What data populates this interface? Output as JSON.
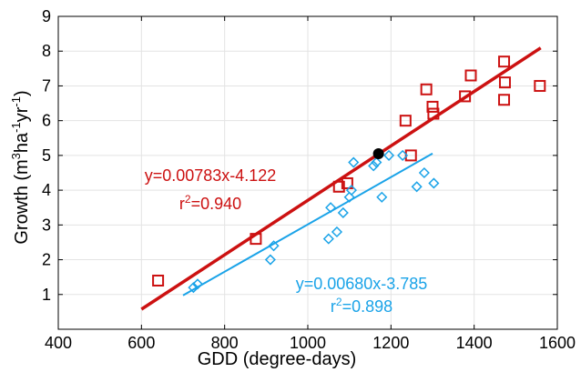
{
  "chart_data": {
    "type": "scatter",
    "xlabel": "GDD (degree-days)",
    "ylabel_parts": [
      "Growth (m",
      "3",
      "ha",
      "-1",
      "yr",
      "-1",
      ")"
    ],
    "xlim": [
      400,
      1600
    ],
    "ylim": [
      0,
      9
    ],
    "xticks": [
      400,
      600,
      800,
      1000,
      1200,
      1400,
      1600
    ],
    "yticks": [
      1,
      2,
      3,
      4,
      5,
      6,
      7,
      8,
      9
    ],
    "grid": true,
    "series": [
      {
        "id": "red",
        "marker": "square",
        "color": "#cc1111",
        "points": [
          [
            640,
            1.4
          ],
          [
            875,
            2.6
          ],
          [
            1075,
            4.1
          ],
          [
            1095,
            4.2
          ],
          [
            1235,
            6.0
          ],
          [
            1248,
            5.0
          ],
          [
            1285,
            6.9
          ],
          [
            1300,
            6.4
          ],
          [
            1302,
            6.2
          ],
          [
            1378,
            6.7
          ],
          [
            1392,
            7.3
          ],
          [
            1472,
            7.7
          ],
          [
            1474,
            7.1
          ],
          [
            1472,
            6.6
          ],
          [
            1558,
            7.0
          ]
        ],
        "fit": {
          "slope": 0.00783,
          "intercept": -4.122,
          "x_range": [
            600,
            1560
          ]
        },
        "equation_label": "y=0.00783x-4.122",
        "r2_prefix": "r",
        "r2_sup": "2",
        "r2_value": "=0.940"
      },
      {
        "id": "blue",
        "marker": "diamond",
        "color": "#1aa3e8",
        "points": [
          [
            725,
            1.2
          ],
          [
            735,
            1.3
          ],
          [
            910,
            2.0
          ],
          [
            918,
            2.4
          ],
          [
            1050,
            2.6
          ],
          [
            1055,
            3.5
          ],
          [
            1070,
            2.8
          ],
          [
            1085,
            3.35
          ],
          [
            1100,
            3.8
          ],
          [
            1105,
            4.0
          ],
          [
            1110,
            4.8
          ],
          [
            1158,
            4.7
          ],
          [
            1165,
            4.8
          ],
          [
            1178,
            3.8
          ],
          [
            1195,
            5.0
          ],
          [
            1228,
            5.0
          ],
          [
            1262,
            4.1
          ],
          [
            1280,
            4.5
          ],
          [
            1303,
            4.2
          ]
        ],
        "fit": {
          "slope": 0.0068,
          "intercept": -3.785,
          "x_range": [
            700,
            1300
          ]
        },
        "equation_label": "y=0.00680x-3.785",
        "r2_prefix": "r",
        "r2_sup": "2",
        "r2_value": "=0.898"
      }
    ],
    "highlight_point": {
      "x": 1170,
      "y": 5.05,
      "color": "#000000"
    }
  }
}
